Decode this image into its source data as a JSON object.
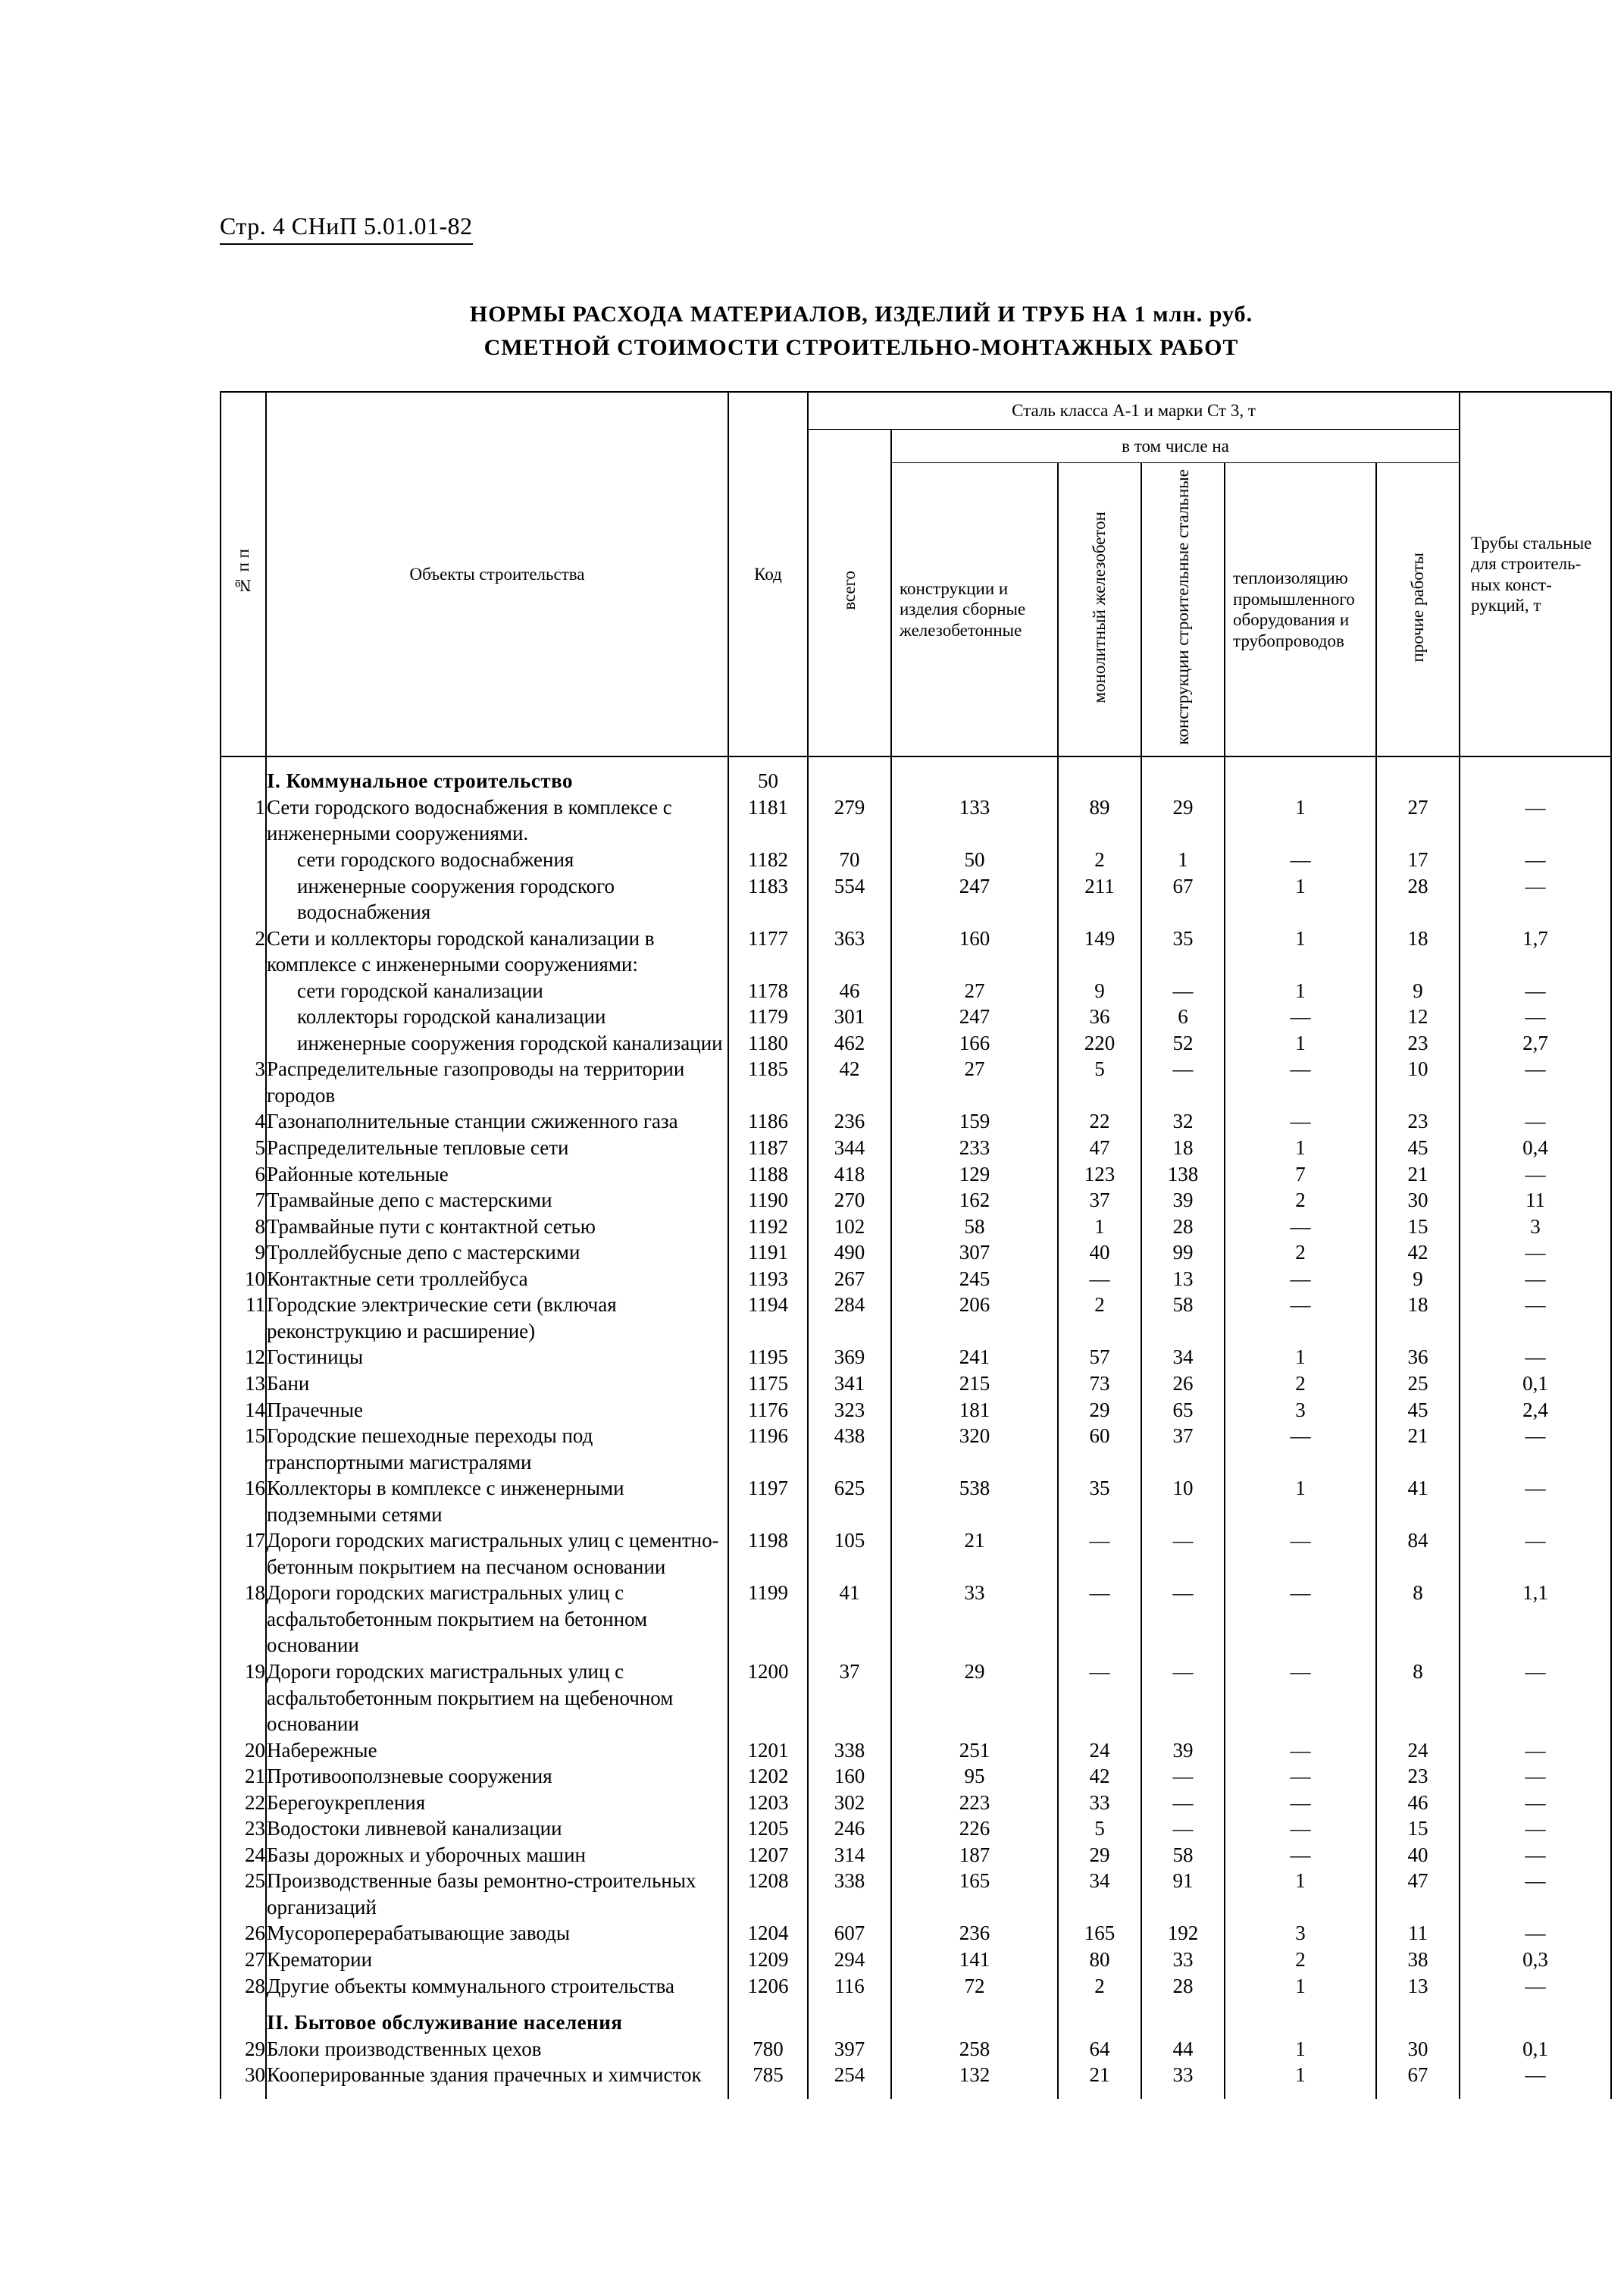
{
  "page_header": "Стр. 4 СНиП 5.01.01-82",
  "title_line1": "НОРМЫ РАСХОДА МАТЕРИАЛОВ, ИЗДЕЛИЙ И ТРУБ НА 1 млн. руб.",
  "title_line2": "СМЕТНОЙ СТОИМОСТИ СТРОИТЕЛЬНО-МОНТАЖНЫХ РАБОТ",
  "head": {
    "num": "№ п п",
    "name": "Объекты строительства",
    "code": "Код",
    "steel_group": "Сталь класса А-1 и марки Ст 3, т",
    "incl": "в том числе на",
    "total": "всего",
    "c1": "конструкции и изделия сборные же­лезобетонные",
    "c2": "монолитный железобетон",
    "c3": "конструкции строитель­ные стальные",
    "c4": "теплоизоля­цию промыш­ленного оборудова­ния и трубо­проводов",
    "c5": "прочие рабо­ты",
    "pipe": "Трубы сталь­ные для строитель­ных конст­рукций, т"
  },
  "sections": [
    {
      "title": "I. Коммунальное строительство",
      "title_code": "50",
      "rows": [
        {
          "n": "1",
          "name": "Сети городского водоснабжения в комплексе с инженерными сооруже­ниями.",
          "code": "1181",
          "v": [
            "279",
            "133",
            "89",
            "29",
            "1",
            "27",
            "—"
          ]
        },
        {
          "name": "сети городского водоснабжения",
          "indent": true,
          "code": "1182",
          "v": [
            "70",
            "50",
            "2",
            "1",
            "—",
            "17",
            "—"
          ]
        },
        {
          "name": "инженерные сооружения городско­го водоснабжения",
          "indent": true,
          "code": "1183",
          "v": [
            "554",
            "247",
            "211",
            "67",
            "1",
            "28",
            "—"
          ]
        },
        {
          "n": "2",
          "name": "Сети и коллекторы городской кана­лизации в комплексе с инженерными сооружениями:",
          "code": "1177",
          "v": [
            "363",
            "160",
            "149",
            "35",
            "1",
            "18",
            "1,7"
          ]
        },
        {
          "name": "сети городской канализации",
          "indent": true,
          "code": "1178",
          "v": [
            "46",
            "27",
            "9",
            "—",
            "1",
            "9",
            "—"
          ]
        },
        {
          "name": "коллекторы городской канализации",
          "indent": true,
          "code": "1179",
          "v": [
            "301",
            "247",
            "36",
            "6",
            "—",
            "12",
            "—"
          ]
        },
        {
          "name": "инженерные сооружения городской канализации",
          "indent": true,
          "code": "1180",
          "v": [
            "462",
            "166",
            "220",
            "52",
            "1",
            "23",
            "2,7"
          ]
        },
        {
          "n": "3",
          "name": "Распределительные газопроводы на территории городов",
          "code": "1185",
          "v": [
            "42",
            "27",
            "5",
            "—",
            "—",
            "10",
            "—"
          ]
        },
        {
          "n": "4",
          "name": "Газонаполнительные станции сжи­женного газа",
          "code": "1186",
          "v": [
            "236",
            "159",
            "22",
            "32",
            "—",
            "23",
            "—"
          ]
        },
        {
          "n": "5",
          "name": "Распределительные тепловые сети",
          "code": "1187",
          "v": [
            "344",
            "233",
            "47",
            "18",
            "1",
            "45",
            "0,4"
          ]
        },
        {
          "n": "6",
          "name": "Районные котельные",
          "code": "1188",
          "v": [
            "418",
            "129",
            "123",
            "138",
            "7",
            "21",
            "—"
          ]
        },
        {
          "n": "7",
          "name": "Трамвайные депо с мастерскими",
          "code": "1190",
          "v": [
            "270",
            "162",
            "37",
            "39",
            "2",
            "30",
            "11"
          ]
        },
        {
          "n": "8",
          "name": "Трамвайные пути с контактной сетью",
          "code": "1192",
          "v": [
            "102",
            "58",
            "1",
            "28",
            "—",
            "15",
            "3"
          ]
        },
        {
          "n": "9",
          "name": "Троллейбусные депо с мастерскими",
          "code": "1191",
          "v": [
            "490",
            "307",
            "40",
            "99",
            "2",
            "42",
            "—"
          ]
        },
        {
          "n": "10",
          "name": "Контактные сети троллейбуса",
          "code": "1193",
          "v": [
            "267",
            "245",
            "—",
            "13",
            "—",
            "9",
            "—"
          ]
        },
        {
          "n": "11",
          "name": "Городские электрические сети (вклю­чая реконструкцию и расширение)",
          "code": "1194",
          "v": [
            "284",
            "206",
            "2",
            "58",
            "—",
            "18",
            "—"
          ]
        },
        {
          "n": "12",
          "name": "Гостиницы",
          "code": "1195",
          "v": [
            "369",
            "241",
            "57",
            "34",
            "1",
            "36",
            "—"
          ]
        },
        {
          "n": "13",
          "name": "Бани",
          "code": "1175",
          "v": [
            "341",
            "215",
            "73",
            "26",
            "2",
            "25",
            "0,1"
          ]
        },
        {
          "n": "14",
          "name": "Прачечные",
          "code": "1176",
          "v": [
            "323",
            "181",
            "29",
            "65",
            "3",
            "45",
            "2,4"
          ]
        },
        {
          "n": "15",
          "name": "Городские пешеходные переходы под транспортными магистралями",
          "code": "1196",
          "v": [
            "438",
            "320",
            "60",
            "37",
            "—",
            "21",
            "—"
          ]
        },
        {
          "n": "16",
          "name": "Коллекторы в комплексе с инженер­ными подземными сетями",
          "code": "1197",
          "v": [
            "625",
            "538",
            "35",
            "10",
            "1",
            "41",
            "—"
          ]
        },
        {
          "n": "17",
          "name": "Дороги городских магистральных улиц с цементно-бетонным покрыти­ем на песчаном основании",
          "code": "1198",
          "v": [
            "105",
            "21",
            "—",
            "—",
            "—",
            "84",
            "—"
          ]
        },
        {
          "n": "18",
          "name": "Дороги городских магистральных улиц с асфальтобетонным покрыти­ем на бетонном основании",
          "code": "1199",
          "v": [
            "41",
            "33",
            "—",
            "—",
            "—",
            "8",
            "1,1"
          ]
        },
        {
          "n": "19",
          "name": "Дороги городских магистральных улиц с асфальтобетонным покрытием на щебеночном основании",
          "code": "1200",
          "v": [
            "37",
            "29",
            "—",
            "—",
            "—",
            "8",
            "—"
          ]
        },
        {
          "n": "20",
          "name": "Набережные",
          "code": "1201",
          "v": [
            "338",
            "251",
            "24",
            "39",
            "—",
            "24",
            "—"
          ]
        },
        {
          "n": "21",
          "name": "Противооползневые сооружения",
          "code": "1202",
          "v": [
            "160",
            "95",
            "42",
            "—",
            "—",
            "23",
            "—"
          ]
        },
        {
          "n": "22",
          "name": "Берегоукрепления",
          "code": "1203",
          "v": [
            "302",
            "223",
            "33",
            "—",
            "—",
            "46",
            "—"
          ]
        },
        {
          "n": "23",
          "name": "Водостоки ливневой канализации",
          "code": "1205",
          "v": [
            "246",
            "226",
            "5",
            "—",
            "—",
            "15",
            "—"
          ]
        },
        {
          "n": "24",
          "name": "Базы дорожных и уборочных машин",
          "code": "1207",
          "v": [
            "314",
            "187",
            "29",
            "58",
            "—",
            "40",
            "—"
          ]
        },
        {
          "n": "25",
          "name": "Производственные базы ремонтно-строительных организаций",
          "code": "1208",
          "v": [
            "338",
            "165",
            "34",
            "91",
            "1",
            "47",
            "—"
          ]
        },
        {
          "n": "26",
          "name": "Мусороперерабатывающие заводы",
          "code": "1204",
          "v": [
            "607",
            "236",
            "165",
            "192",
            "3",
            "11",
            "—"
          ]
        },
        {
          "n": "27",
          "name": "Крематории",
          "code": "1209",
          "v": [
            "294",
            "141",
            "80",
            "33",
            "2",
            "38",
            "0,3"
          ]
        },
        {
          "n": "28",
          "name": "Другие объекты коммунального строительства",
          "code": "1206",
          "v": [
            "116",
            "72",
            "2",
            "28",
            "1",
            "13",
            "—"
          ]
        }
      ]
    },
    {
      "title": "II. Бытовое обслуживание населения",
      "rows": [
        {
          "n": "29",
          "name": "Блоки производственных цехов",
          "code": "780",
          "v": [
            "397",
            "258",
            "64",
            "44",
            "1",
            "30",
            "0,1"
          ]
        },
        {
          "n": "30",
          "name": "Кооперированные здания прачечных и химчисток",
          "code": "785",
          "v": [
            "254",
            "132",
            "21",
            "33",
            "1",
            "67",
            "—"
          ]
        }
      ]
    }
  ]
}
